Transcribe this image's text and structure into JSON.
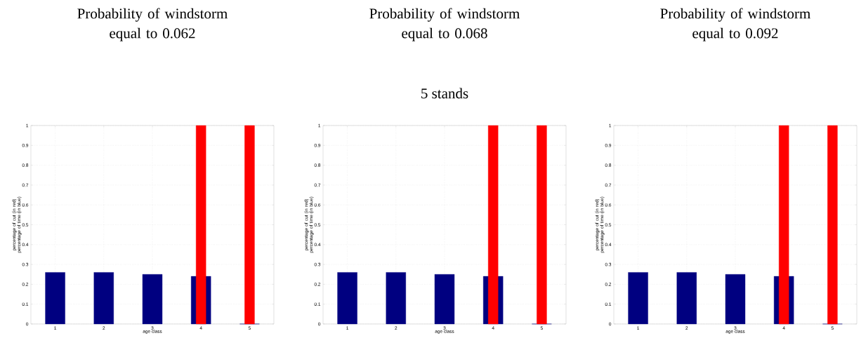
{
  "chart_data": [
    {
      "type": "bar",
      "title": "Probability of windstorm equal to 0.062",
      "xlabel": "age class",
      "ylabel": "percentage of cut (in red) percentage of time (in blue)",
      "categories": [
        "1",
        "2",
        "3",
        "4",
        "5"
      ],
      "series": [
        {
          "color": "#000080",
          "values": [
            0.26,
            0.26,
            0.25,
            0.24,
            0
          ]
        },
        {
          "color": "#ff0000",
          "values": [
            null,
            null,
            null,
            1,
            1
          ]
        }
      ],
      "ylim": [
        0,
        1
      ],
      "yticks": [
        0,
        0.1,
        0.2,
        0.3,
        0.4,
        0.5,
        0.6,
        0.7,
        0.8,
        0.9,
        1
      ],
      "grid": true
    },
    {
      "type": "bar",
      "title": "Probability of windstorm equal to 0.068",
      "subtitle": "5 stands",
      "xlabel": "age class",
      "ylabel": "percentage of cut (in red) percentage of time (in blue)",
      "categories": [
        "1",
        "2",
        "3",
        "4",
        "5"
      ],
      "series": [
        {
          "color": "#000080",
          "values": [
            0.26,
            0.26,
            0.25,
            0.24,
            0
          ]
        },
        {
          "color": "#ff0000",
          "values": [
            null,
            null,
            null,
            1,
            1
          ]
        }
      ],
      "ylim": [
        0,
        1
      ],
      "yticks": [
        0,
        0.1,
        0.2,
        0.3,
        0.4,
        0.5,
        0.6,
        0.7,
        0.8,
        0.9,
        1
      ],
      "grid": true
    },
    {
      "type": "bar",
      "title": "Probability of windstorm equal to 0.092",
      "xlabel": "age class",
      "ylabel": "percentage of cut (in red) percentage of time (in blue)",
      "categories": [
        "1",
        "2",
        "3",
        "4",
        "5"
      ],
      "series": [
        {
          "color": "#000080",
          "values": [
            0.26,
            0.26,
            0.25,
            0.24,
            0
          ]
        },
        {
          "color": "#ff0000",
          "values": [
            null,
            null,
            null,
            1,
            1
          ]
        }
      ],
      "ylim": [
        0,
        1
      ],
      "yticks": [
        0,
        0.1,
        0.2,
        0.3,
        0.4,
        0.5,
        0.6,
        0.7,
        0.8,
        0.9,
        1
      ],
      "grid": true
    }
  ]
}
